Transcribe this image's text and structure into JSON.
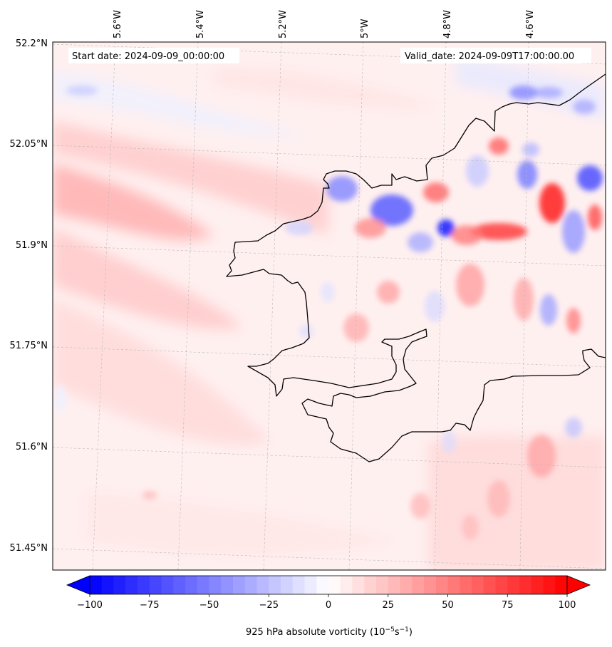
{
  "map": {
    "start_date_label": "Start date: 2024-09-09_00:00:00",
    "valid_date_label": "Valid_date: 2024-09-09T17:00:00.00",
    "lon_ticks": [
      "5.6°W",
      "5.4°W",
      "5.2°W",
      "5°W",
      "4.8°W",
      "4.6°W"
    ],
    "lat_ticks": [
      "52.2°N",
      "52.05°N",
      "51.9°N",
      "51.75°N",
      "51.6°N",
      "51.45°N"
    ],
    "field": "925 hPa absolute vorticity",
    "colors": {
      "negative": "#0000ff",
      "zero": "#ffffff",
      "positive": "#ff0000",
      "coast": "#000000"
    }
  },
  "colorbar": {
    "label_main": "925 hPa absolute vorticity (10",
    "label_exp1": "−5",
    "label_mid": "s",
    "label_exp2": "−1",
    "label_end": ")",
    "tick_labels": [
      "−100",
      "−75",
      "−50",
      "−25",
      "0",
      "25",
      "50",
      "75",
      "100"
    ],
    "tick_values": [
      -100,
      -75,
      -50,
      -25,
      0,
      25,
      50,
      75,
      100
    ],
    "min": -100,
    "max": 100,
    "levels": 40,
    "extend": "both"
  }
}
